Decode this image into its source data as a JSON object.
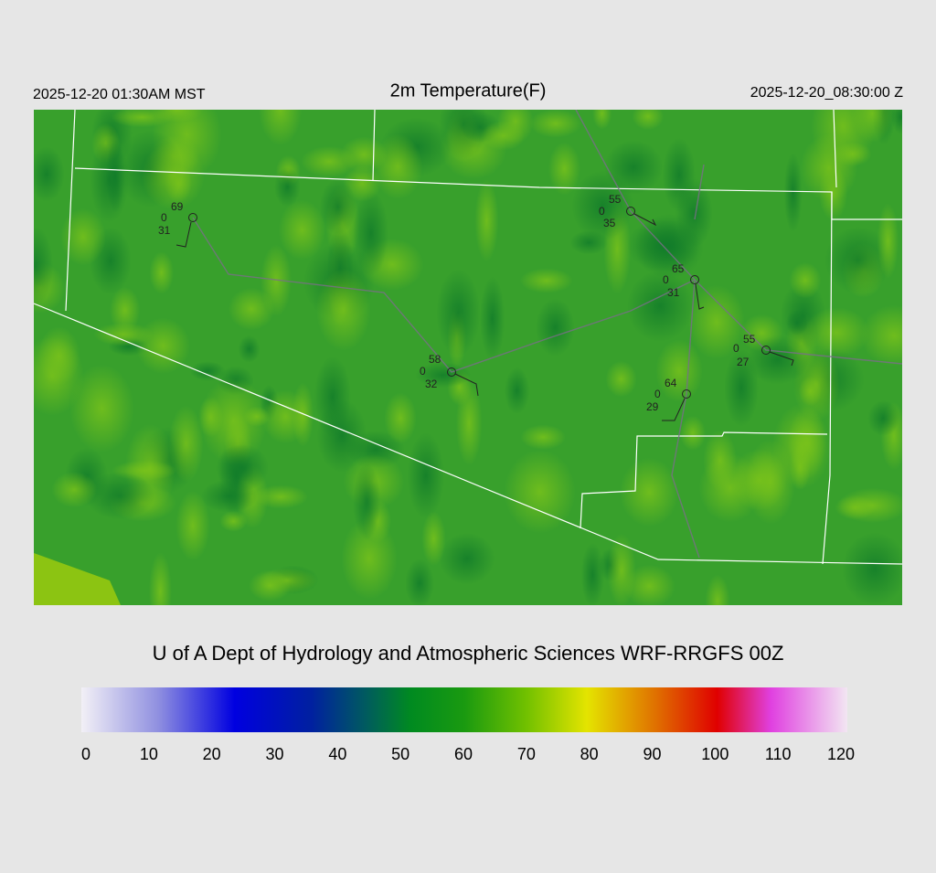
{
  "header": {
    "local_time": "2025-12-20 01:30AM MST",
    "title": "2m Temperature(F)",
    "utc_time": "2025-12-20_08:30:00 Z"
  },
  "stations": [
    {
      "temp": 69,
      "wind": 0,
      "dew": 31
    },
    {
      "temp": 55,
      "wind": 0,
      "dew": 35
    },
    {
      "temp": 65,
      "wind": 0,
      "dew": 31
    },
    {
      "temp": 55,
      "wind": 0,
      "dew": 27
    },
    {
      "temp": 58,
      "wind": 0,
      "dew": 32
    },
    {
      "temp": 64,
      "wind": 0,
      "dew": 29
    }
  ],
  "footer": {
    "title": "U of A Dept of Hydrology and Atmospheric Sciences WRF-RRGFS 00Z"
  },
  "colorbar": {
    "range": [
      0,
      120
    ],
    "ticks": [
      0,
      10,
      20,
      30,
      40,
      50,
      60,
      70,
      80,
      90,
      100,
      110,
      120
    ]
  }
}
